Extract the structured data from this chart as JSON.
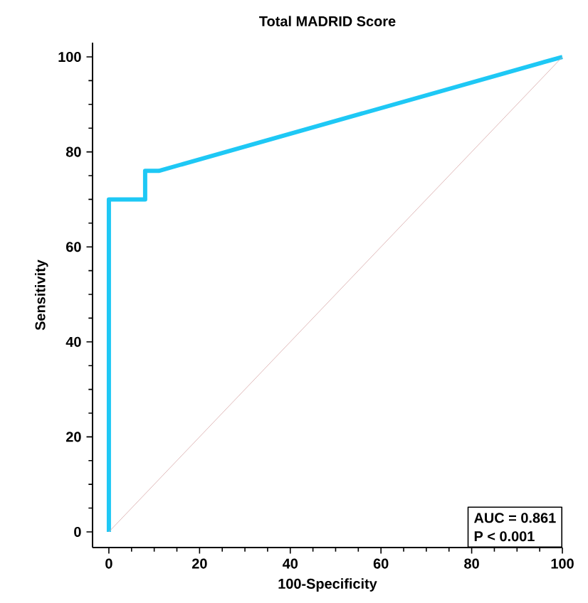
{
  "chart_data": {
    "type": "line",
    "title": "Total MADRID Score",
    "xlabel": "100-Specificity",
    "ylabel": "Sensitivity",
    "xlim": [
      -3.6,
      100
    ],
    "ylim": [
      -3.3,
      103
    ],
    "xticks": [
      0,
      20,
      40,
      60,
      80,
      100
    ],
    "yticks": [
      0,
      20,
      40,
      60,
      80,
      100
    ],
    "grid": false,
    "marker": "none",
    "line_style": "solid",
    "series": [
      {
        "color": "#1ec8f5",
        "x": [
          0,
          0,
          8,
          8,
          11,
          100
        ],
        "values": [
          0,
          70,
          70,
          76,
          76,
          100
        ]
      },
      {
        "color": "#d8a8a8",
        "x": [
          0,
          100
        ],
        "values": [
          0,
          100
        ]
      }
    ],
    "annotations": [
      "AUC = 0.861",
      "P < 0.001"
    ]
  }
}
